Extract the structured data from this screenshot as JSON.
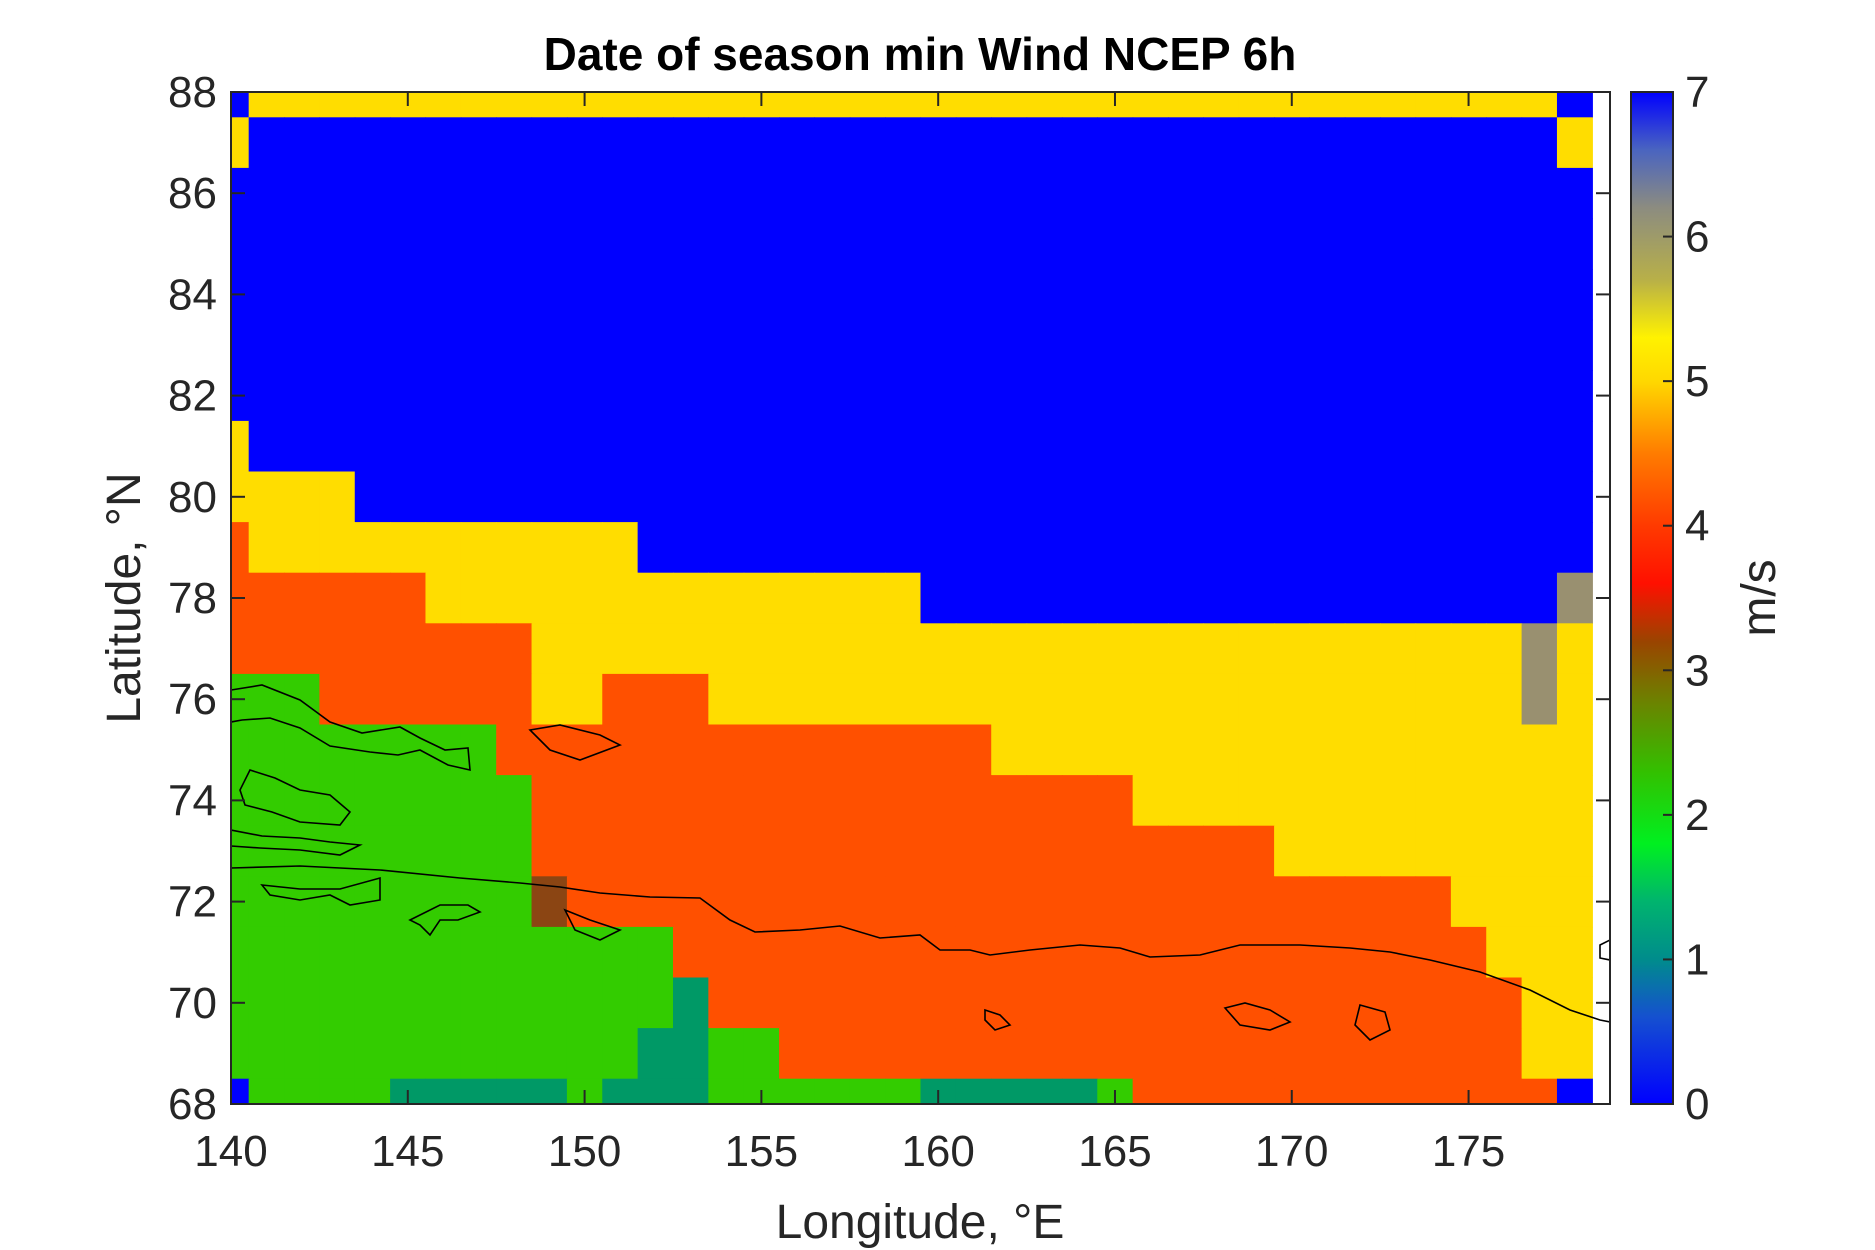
{
  "chart_data": {
    "type": "heatmap",
    "title": "Date of season min Wind NCEP 6h",
    "xlabel": "Longitude, °E",
    "ylabel": "Latitude, °N",
    "xlim": [
      140,
      179
    ],
    "ylim": [
      68,
      88
    ],
    "x_ticks": [
      140,
      145,
      150,
      155,
      160,
      165,
      170,
      175
    ],
    "y_ticks": [
      68,
      70,
      72,
      74,
      76,
      78,
      80,
      82,
      84,
      86,
      88
    ],
    "colorbar": {
      "label": "m/s",
      "range": [
        0,
        7
      ],
      "ticks": [
        0,
        1,
        2,
        3,
        4,
        5,
        6,
        7
      ],
      "stops": [
        {
          "v": 0,
          "c": "#0000FF"
        },
        {
          "v": 0.6,
          "c": "#1550D0"
        },
        {
          "v": 1.0,
          "c": "#008C8C"
        },
        {
          "v": 1.4,
          "c": "#00B46E"
        },
        {
          "v": 1.8,
          "c": "#00F020"
        },
        {
          "v": 2.3,
          "c": "#33C000"
        },
        {
          "v": 2.8,
          "c": "#6E8000"
        },
        {
          "v": 3.2,
          "c": "#9A4400"
        },
        {
          "v": 3.6,
          "c": "#FF1000"
        },
        {
          "v": 4.0,
          "c": "#FF3A00"
        },
        {
          "v": 4.5,
          "c": "#FF7C00"
        },
        {
          "v": 5.0,
          "c": "#FFD800"
        },
        {
          "v": 5.3,
          "c": "#FFF200"
        },
        {
          "v": 5.7,
          "c": "#B8B048"
        },
        {
          "v": 6.2,
          "c": "#8C8C80"
        },
        {
          "v": 6.6,
          "c": "#4A64C0"
        },
        {
          "v": 7.0,
          "c": "#0000FF"
        }
      ]
    },
    "grid": {
      "lon_start": 140,
      "lon_step": 1,
      "lat_start": 88,
      "lat_step": -1,
      "lon_count": 39,
      "lat_count": 21,
      "rows": [
        [
          7,
          5,
          5,
          5,
          5,
          5,
          5,
          5,
          5,
          5,
          5,
          5,
          5,
          5,
          5,
          5,
          5,
          5,
          5,
          5,
          5,
          5,
          5,
          5,
          5,
          5,
          5,
          5,
          5,
          5,
          5,
          5,
          5,
          5,
          5,
          5,
          5,
          5,
          7
        ],
        [
          5,
          7,
          7,
          7,
          7,
          7,
          7,
          7,
          7,
          7,
          7,
          7,
          7,
          7,
          7,
          7,
          7,
          7,
          7,
          7,
          7,
          7,
          7,
          7,
          7,
          7,
          7,
          7,
          7,
          7,
          7,
          7,
          7,
          7,
          7,
          7,
          7,
          7,
          5
        ],
        [
          7,
          7,
          7,
          7,
          7,
          7,
          7,
          7,
          7,
          7,
          7,
          7,
          7,
          7,
          7,
          7,
          7,
          7,
          7,
          7,
          7,
          7,
          7,
          7,
          7,
          7,
          7,
          7,
          7,
          7,
          7,
          7,
          7,
          7,
          7,
          7,
          7,
          7,
          7
        ],
        [
          7,
          7,
          7,
          7,
          7,
          7,
          7,
          7,
          7,
          7,
          7,
          7,
          7,
          7,
          7,
          7,
          7,
          7,
          7,
          7,
          7,
          7,
          7,
          7,
          7,
          7,
          7,
          7,
          7,
          7,
          7,
          7,
          7,
          7,
          7,
          7,
          7,
          7,
          7
        ],
        [
          7,
          7,
          7,
          7,
          7,
          7,
          7,
          7,
          7,
          7,
          7,
          7,
          7,
          7,
          7,
          7,
          7,
          7,
          7,
          7,
          7,
          7,
          7,
          7,
          7,
          7,
          7,
          7,
          7,
          7,
          7,
          7,
          7,
          7,
          7,
          7,
          7,
          7,
          7
        ],
        [
          7,
          7,
          7,
          7,
          7,
          7,
          7,
          7,
          7,
          7,
          7,
          7,
          7,
          7,
          7,
          7,
          7,
          7,
          7,
          7,
          7,
          7,
          7,
          7,
          7,
          7,
          7,
          7,
          7,
          7,
          7,
          7,
          7,
          7,
          7,
          7,
          7,
          7,
          7
        ],
        [
          7,
          7,
          7,
          7,
          7,
          7,
          7,
          7,
          7,
          7,
          7,
          7,
          7,
          7,
          7,
          7,
          7,
          7,
          7,
          7,
          7,
          7,
          7,
          7,
          7,
          7,
          7,
          7,
          7,
          7,
          7,
          7,
          7,
          7,
          7,
          7,
          7,
          7,
          7
        ],
        [
          5,
          7,
          7,
          7,
          7,
          7,
          7,
          7,
          7,
          7,
          7,
          7,
          7,
          7,
          7,
          7,
          7,
          7,
          7,
          7,
          7,
          7,
          7,
          7,
          7,
          7,
          7,
          7,
          7,
          7,
          7,
          7,
          7,
          7,
          7,
          7,
          7,
          7,
          7
        ],
        [
          5,
          5,
          5,
          5,
          7,
          7,
          7,
          7,
          7,
          7,
          7,
          7,
          7,
          7,
          7,
          7,
          7,
          7,
          7,
          7,
          7,
          7,
          7,
          7,
          7,
          7,
          7,
          7,
          7,
          7,
          7,
          7,
          7,
          7,
          7,
          7,
          7,
          7,
          7
        ],
        [
          4,
          5,
          5,
          5,
          5,
          5,
          5,
          5,
          5,
          5,
          5,
          5,
          7,
          7,
          7,
          7,
          7,
          7,
          7,
          7,
          7,
          7,
          7,
          7,
          7,
          7,
          7,
          7,
          7,
          7,
          7,
          7,
          7,
          7,
          7,
          7,
          7,
          7,
          7
        ],
        [
          4,
          4,
          4,
          4,
          4,
          4,
          5,
          5,
          5,
          5,
          5,
          5,
          5,
          5,
          5,
          5,
          5,
          5,
          5,
          5,
          7,
          7,
          7,
          7,
          7,
          7,
          7,
          7,
          7,
          7,
          7,
          7,
          7,
          7,
          7,
          7,
          7,
          7,
          6
        ],
        [
          4,
          4,
          4,
          4,
          4,
          4,
          4,
          4,
          4,
          5,
          5,
          5,
          5,
          5,
          5,
          5,
          5,
          5,
          5,
          5,
          5,
          5,
          5,
          5,
          5,
          5,
          5,
          5,
          5,
          5,
          5,
          5,
          5,
          5,
          5,
          5,
          5,
          6,
          5
        ],
        [
          2,
          2,
          2,
          4,
          4,
          4,
          4,
          4,
          4,
          5,
          5,
          4,
          4,
          4,
          5,
          5,
          5,
          5,
          5,
          5,
          5,
          5,
          5,
          5,
          5,
          5,
          5,
          5,
          5,
          5,
          5,
          5,
          5,
          5,
          5,
          5,
          5,
          6,
          5
        ],
        [
          2,
          2,
          2,
          2,
          2,
          2,
          2,
          2,
          4,
          4,
          4,
          4,
          4,
          4,
          4,
          4,
          4,
          4,
          4,
          4,
          4,
          4,
          5,
          5,
          5,
          5,
          5,
          5,
          5,
          5,
          5,
          5,
          5,
          5,
          5,
          5,
          5,
          5,
          5
        ],
        [
          2,
          2,
          2,
          2,
          2,
          2,
          2,
          2,
          2,
          4,
          4,
          4,
          4,
          4,
          4,
          4,
          4,
          4,
          4,
          4,
          4,
          4,
          4,
          4,
          4,
          4,
          5,
          5,
          5,
          5,
          5,
          5,
          5,
          5,
          5,
          5,
          5,
          5,
          5
        ],
        [
          2,
          2,
          2,
          2,
          2,
          2,
          2,
          2,
          2,
          4,
          4,
          4,
          4,
          4,
          4,
          4,
          4,
          4,
          4,
          4,
          4,
          4,
          4,
          4,
          4,
          4,
          4,
          4,
          4,
          4,
          5,
          5,
          5,
          5,
          5,
          5,
          5,
          5,
          5
        ],
        [
          2,
          2,
          2,
          2,
          2,
          2,
          2,
          2,
          2,
          3,
          4,
          4,
          4,
          4,
          4,
          4,
          4,
          4,
          4,
          4,
          4,
          4,
          4,
          4,
          4,
          4,
          4,
          4,
          4,
          4,
          4,
          4,
          4,
          4,
          4,
          5,
          5,
          5,
          5
        ],
        [
          2,
          2,
          2,
          2,
          2,
          2,
          2,
          2,
          2,
          2,
          2,
          2,
          2,
          4,
          4,
          4,
          4,
          4,
          4,
          4,
          4,
          4,
          4,
          4,
          4,
          4,
          4,
          4,
          4,
          4,
          4,
          4,
          4,
          4,
          4,
          4,
          5,
          5,
          5
        ],
        [
          2,
          2,
          2,
          2,
          2,
          2,
          2,
          2,
          2,
          2,
          2,
          2,
          2,
          1,
          4,
          4,
          4,
          4,
          4,
          4,
          4,
          4,
          4,
          4,
          4,
          4,
          4,
          4,
          4,
          4,
          4,
          4,
          4,
          4,
          4,
          4,
          4,
          5,
          5
        ],
        [
          2,
          2,
          2,
          2,
          2,
          2,
          2,
          2,
          2,
          2,
          2,
          2,
          1,
          1,
          2,
          2,
          4,
          4,
          4,
          4,
          4,
          4,
          4,
          4,
          4,
          4,
          4,
          4,
          4,
          4,
          4,
          4,
          4,
          4,
          4,
          4,
          4,
          5,
          5
        ],
        [
          7,
          2,
          2,
          2,
          2,
          1,
          1,
          1,
          1,
          1,
          2,
          1,
          1,
          1,
          2,
          2,
          2,
          2,
          2,
          2,
          1,
          1,
          1,
          1,
          1,
          2,
          4,
          4,
          4,
          4,
          4,
          4,
          4,
          4,
          4,
          4,
          4,
          4,
          7
        ]
      ]
    }
  }
}
